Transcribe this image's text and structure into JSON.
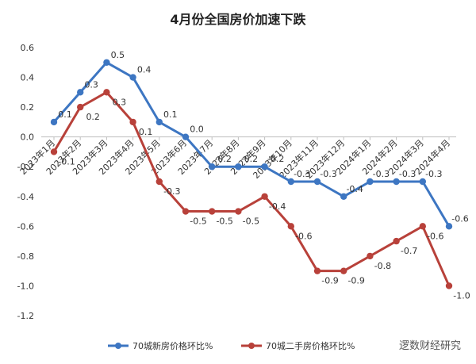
{
  "chart_data": {
    "type": "line",
    "title": "4月份全国房价加速下跌",
    "categories": [
      "2023年1月",
      "2023年2月",
      "2023年3月",
      "2023年4月",
      "2023年5月",
      "2023年6月",
      "2023年7月",
      "2023年8月",
      "2023年9月",
      "2023年10月",
      "2023年11月",
      "2023年12月",
      "2024年1月",
      "2024年2月",
      "2024年3月",
      "2024年4月"
    ],
    "ylim": [
      -1.2,
      0.6
    ],
    "yticks": [
      "0.6",
      "0.4",
      "0.2",
      "0.0",
      "-0.2",
      "-0.4",
      "-0.6",
      "-0.8",
      "-1.0",
      "-1.2"
    ],
    "grid": false,
    "legend_position": "bottom",
    "series": [
      {
        "name": "70城新房价格环比%",
        "color": "#3d76c2",
        "values": [
          0.1,
          0.3,
          0.5,
          0.4,
          0.1,
          0.0,
          -0.2,
          -0.2,
          -0.2,
          -0.3,
          -0.3,
          -0.4,
          -0.3,
          -0.3,
          -0.3,
          -0.6
        ],
        "labels": [
          "0.1",
          "0.3",
          "0.5",
          "0.4",
          "0.1",
          "0.0",
          "-0.2",
          "-0.2",
          "-0.2",
          "-0.3",
          "-0.3",
          "-0.4",
          "-0.3",
          "-0.3",
          "-0.3",
          "-0.6"
        ]
      },
      {
        "name": "70城二手房价格环比%",
        "color": "#b8413a",
        "values": [
          -0.1,
          0.2,
          0.3,
          0.1,
          -0.3,
          -0.5,
          -0.5,
          -0.5,
          -0.4,
          -0.6,
          -0.9,
          -0.9,
          -0.8,
          -0.7,
          -0.6,
          -1.0
        ],
        "labels": [
          "-0.1",
          "0.2",
          "0.3",
          "0.1",
          "-0.3",
          "-0.5",
          "-0.5",
          "-0.5",
          "-0.4",
          "-0.6",
          "-0.9",
          "-0.9",
          "-0.8",
          "-0.7",
          "-0.6",
          "-1.0"
        ]
      }
    ]
  },
  "watermark": "逻数财经研究"
}
